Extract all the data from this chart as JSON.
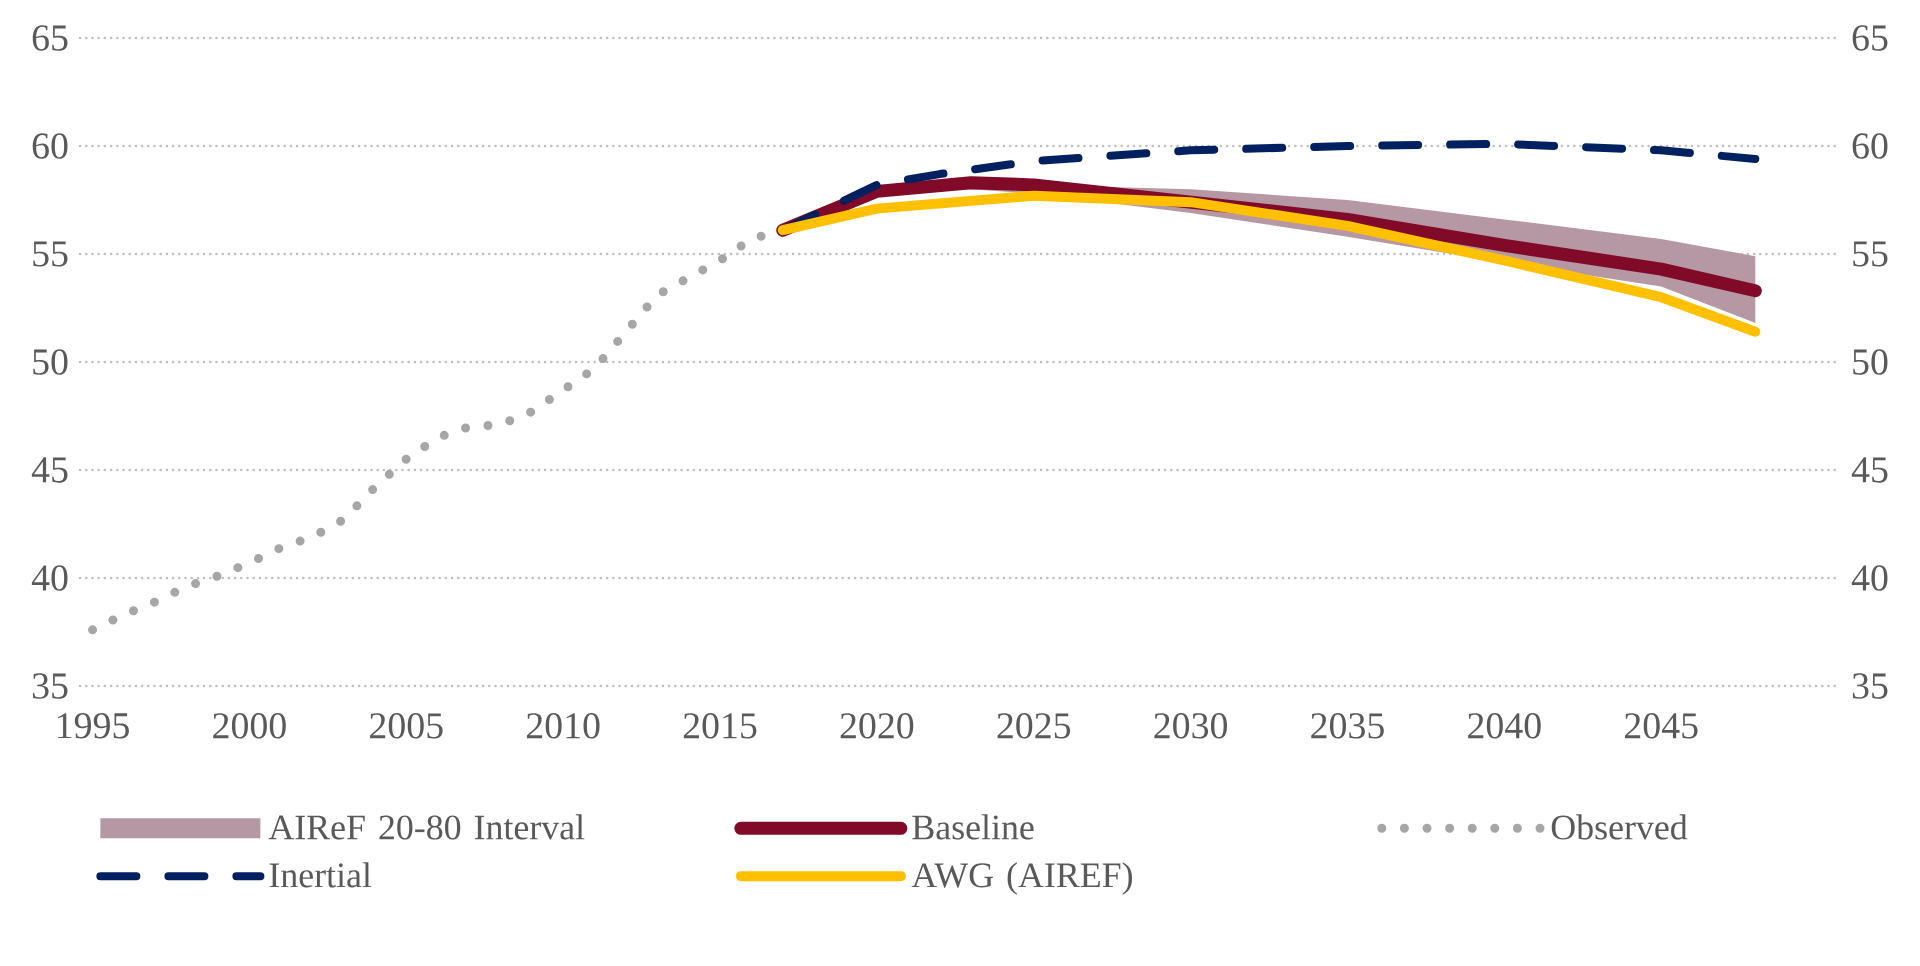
{
  "chart_data": {
    "type": "line",
    "xlim": [
      1994.6,
      2050.7
    ],
    "xticks": [
      1995,
      2000,
      2005,
      2010,
      2015,
      2020,
      2025,
      2030,
      2035,
      2040,
      2045
    ],
    "ylim": [
      35,
      65
    ],
    "yticks": [
      35,
      40,
      45,
      50,
      55,
      60,
      65
    ],
    "y2lim": [
      35,
      65
    ],
    "y2ticks": [
      35,
      40,
      45,
      50,
      55,
      60,
      65
    ],
    "grid": "y",
    "legend": "bottom",
    "annotations": [
      "AIReF 20-80 Interval"
    ],
    "series": [
      {
        "name": "Baseline",
        "line_style": "solid",
        "color": "#800a28",
        "x": [
          2017,
          2020,
          2023,
          2025,
          2030,
          2035,
          2040,
          2045,
          2048
        ],
        "values": [
          56.1,
          57.9,
          58.3,
          58.2,
          57.4,
          56.6,
          55.4,
          54.3,
          53.3
        ],
        "lower": [
          56.1,
          57.9,
          58.0,
          57.8,
          56.9,
          55.8,
          54.6,
          53.5,
          51.8
        ],
        "upper": [
          56.1,
          57.9,
          58.3,
          58.2,
          58.0,
          57.5,
          56.6,
          55.7,
          54.9
        ]
      },
      {
        "name": "Observed",
        "line_style": "dotted",
        "color": "#a6a6a6",
        "x": [
          1995,
          1996,
          1997,
          1998,
          1999,
          2000,
          2001,
          2002,
          2003,
          2004,
          2005,
          2006,
          2007,
          2008,
          2009,
          2010,
          2011,
          2012,
          2013,
          2014,
          2015,
          2016,
          2017
        ],
        "values": [
          37.6,
          38.3,
          38.9,
          39.6,
          40.1,
          40.7,
          41.4,
          41.9,
          42.7,
          44.2,
          45.5,
          46.5,
          47.0,
          47.1,
          47.7,
          48.7,
          49.7,
          51.4,
          53.1,
          53.9,
          54.7,
          55.7,
          56.1
        ]
      },
      {
        "name": "Inertial",
        "line_style": "dashed",
        "color": "#002060",
        "x": [
          2017,
          2020,
          2022,
          2025,
          2030,
          2035,
          2040,
          2045,
          2048
        ],
        "values": [
          56.1,
          58.2,
          58.7,
          59.3,
          59.8,
          60.0,
          60.1,
          59.8,
          59.4
        ]
      },
      {
        "name": "AWG (AIREF)",
        "line_style": "solid",
        "color": "#ffc000",
        "x": [
          2017,
          2020,
          2025,
          2030,
          2035,
          2040,
          2045,
          2048
        ],
        "values": [
          56.1,
          57.1,
          57.7,
          57.4,
          56.3,
          54.7,
          53.0,
          51.4
        ]
      }
    ]
  }
}
